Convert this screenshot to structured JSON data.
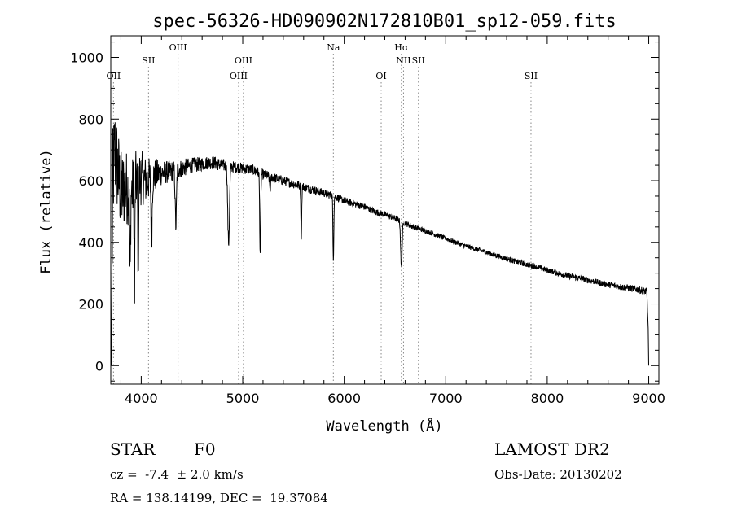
{
  "chart_data": {
    "type": "line",
    "title": "spec-56326-HD090902N172810B01_sp12-059.fits",
    "xlabel": "Wavelength (Å)",
    "ylabel": "Flux (relative)",
    "xlim": [
      3700,
      9100
    ],
    "ylim": [
      -60,
      1070
    ],
    "x_ticks": [
      4000,
      5000,
      6000,
      7000,
      8000,
      9000
    ],
    "y_ticks": [
      0,
      200,
      400,
      600,
      800,
      1000
    ],
    "grid": false,
    "line_color": "#000000",
    "marker_color": "#888888",
    "line_markers": [
      {
        "label": "OII",
        "x": 3727,
        "row": 3
      },
      {
        "label": "SII",
        "x": 4072,
        "row": 2
      },
      {
        "label": "OIII",
        "x": 4363,
        "row": 1
      },
      {
        "label": "OIII",
        "x": 4959,
        "row": 3
      },
      {
        "label": "OIII",
        "x": 5007,
        "row": 2
      },
      {
        "label": "Na",
        "x": 5893,
        "row": 1
      },
      {
        "label": "OI",
        "x": 6364,
        "row": 3
      },
      {
        "label": "Hα",
        "x": 6563,
        "row": 1
      },
      {
        "label": "NII",
        "x": 6584,
        "row": 2
      },
      {
        "label": "SII",
        "x": 6731,
        "row": 2
      },
      {
        "label": "SII",
        "x": 7840,
        "row": 3
      }
    ],
    "continuum": [
      [
        3705,
        0
      ],
      [
        3720,
        600
      ],
      [
        3740,
        700
      ],
      [
        3760,
        650
      ],
      [
        3800,
        560
      ],
      [
        3850,
        580
      ],
      [
        3900,
        560
      ],
      [
        3950,
        600
      ],
      [
        4000,
        610
      ],
      [
        4050,
        600
      ],
      [
        4100,
        610
      ],
      [
        4150,
        620
      ],
      [
        4200,
        625
      ],
      [
        4300,
        630
      ],
      [
        4400,
        640
      ],
      [
        4500,
        650
      ],
      [
        4600,
        655
      ],
      [
        4700,
        660
      ],
      [
        4800,
        650
      ],
      [
        4900,
        645
      ],
      [
        5000,
        640
      ],
      [
        5100,
        635
      ],
      [
        5200,
        620
      ],
      [
        5300,
        610
      ],
      [
        5400,
        600
      ],
      [
        5500,
        590
      ],
      [
        5600,
        580
      ],
      [
        5700,
        570
      ],
      [
        5800,
        560
      ],
      [
        5900,
        550
      ],
      [
        6000,
        535
      ],
      [
        6100,
        525
      ],
      [
        6200,
        515
      ],
      [
        6300,
        500
      ],
      [
        6400,
        490
      ],
      [
        6500,
        478
      ],
      [
        6600,
        462
      ],
      [
        6700,
        448
      ],
      [
        6800,
        438
      ],
      [
        6900,
        425
      ],
      [
        7000,
        412
      ],
      [
        7100,
        400
      ],
      [
        7200,
        388
      ],
      [
        7300,
        378
      ],
      [
        7400,
        368
      ],
      [
        7500,
        357
      ],
      [
        7600,
        347
      ],
      [
        7700,
        337
      ],
      [
        7800,
        328
      ],
      [
        7900,
        320
      ],
      [
        8000,
        310
      ],
      [
        8100,
        300
      ],
      [
        8200,
        292
      ],
      [
        8300,
        285
      ],
      [
        8400,
        278
      ],
      [
        8500,
        270
      ],
      [
        8600,
        263
      ],
      [
        8700,
        257
      ],
      [
        8800,
        252
      ],
      [
        8900,
        247
      ],
      [
        8980,
        240
      ],
      [
        8995,
        120
      ],
      [
        9000,
        0
      ]
    ],
    "absorption_lines": [
      {
        "x": 3890,
        "depth": 300,
        "width": 6
      },
      {
        "x": 3934,
        "depth": 380,
        "width": 5
      },
      {
        "x": 3970,
        "depth": 260,
        "width": 6
      },
      {
        "x": 4102,
        "depth": 190,
        "width": 8
      },
      {
        "x": 4341,
        "depth": 180,
        "width": 9
      },
      {
        "x": 4861,
        "depth": 250,
        "width": 12
      },
      {
        "x": 5172,
        "depth": 260,
        "width": 7
      },
      {
        "x": 5270,
        "depth": 40,
        "width": 8
      },
      {
        "x": 5577,
        "depth": 160,
        "width": 6
      },
      {
        "x": 5893,
        "depth": 200,
        "width": 6
      },
      {
        "x": 6563,
        "depth": 150,
        "width": 10
      }
    ],
    "noise_amplitude": [
      [
        3700,
        180
      ],
      [
        3800,
        140
      ],
      [
        3900,
        110
      ],
      [
        4000,
        90
      ],
      [
        4200,
        40
      ],
      [
        4500,
        25
      ],
      [
        5000,
        18
      ],
      [
        6000,
        12
      ],
      [
        7000,
        8
      ],
      [
        8500,
        10
      ],
      [
        9000,
        12
      ]
    ]
  },
  "info": {
    "object_type": "STAR",
    "subclass": "F0",
    "survey": "LAMOST DR2",
    "redshift": "cz =  -7.4  ± 2.0 km/s",
    "obs_date": "Obs-Date: 20130202",
    "coords": "RA = 138.14199, DEC =  19.37084"
  }
}
